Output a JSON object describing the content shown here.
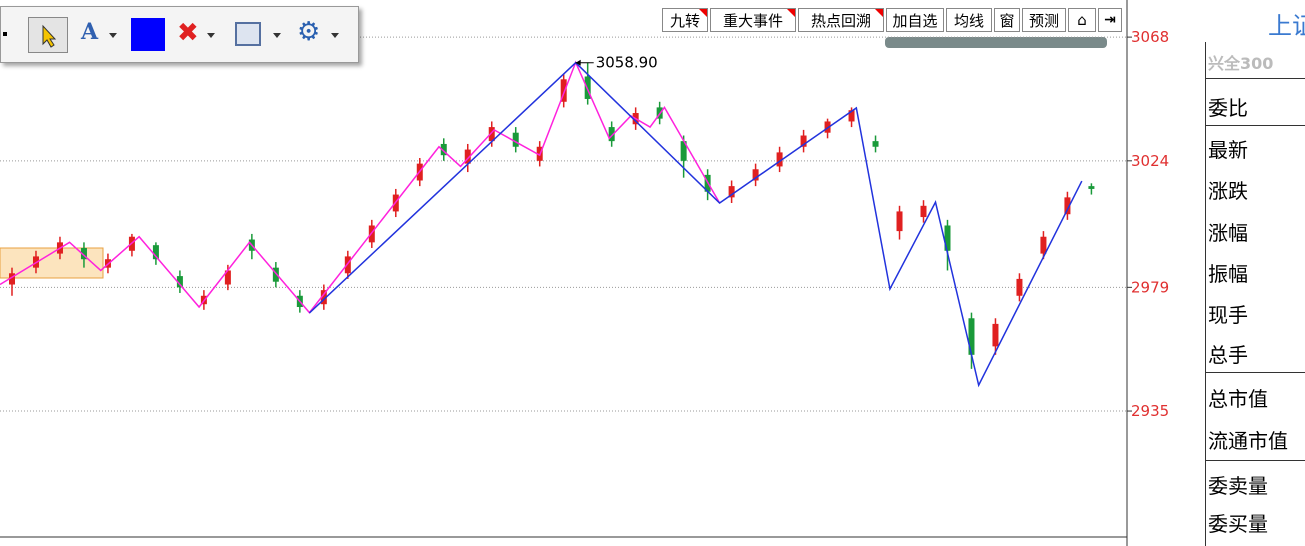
{
  "toolbar": {
    "text_tool": "A"
  },
  "tabs": [
    "九转",
    "重大事件",
    "热点回溯",
    "加自选",
    "均线",
    "窗",
    "预测"
  ],
  "quote_panel": {
    "title": "上证",
    "fund": "兴全300",
    "rows": [
      "委比",
      "最新",
      "涨跌",
      "涨幅",
      "振幅",
      "现手",
      "总手",
      "总市值",
      "流通市值",
      "委卖量",
      "委买量"
    ]
  },
  "chart_data": {
    "type": "candlestick",
    "x": [
      0,
      1,
      2,
      3,
      4,
      5,
      6,
      7,
      8,
      9,
      10,
      11,
      12,
      13,
      14,
      15,
      16,
      17,
      18,
      19,
      20,
      21,
      22,
      23,
      24,
      25,
      26,
      27,
      28,
      29,
      30,
      31,
      32,
      33,
      34,
      35,
      36,
      37,
      38,
      39,
      40,
      41,
      42,
      43,
      44,
      45
    ],
    "open": [
      2980,
      2986,
      2991,
      2993,
      2986,
      2992,
      2994,
      2983,
      2973,
      2980,
      2996,
      2986,
      2976,
      2973,
      2984,
      2995,
      3006,
      3017,
      3030,
      3023,
      3031,
      3034,
      3024,
      3045,
      3054,
      3036,
      3037,
      3043,
      3031,
      3019,
      3011,
      3017,
      3022,
      3029,
      3034,
      3038,
      3031,
      2999,
      3004,
      3001,
      2968,
      2958,
      2976,
      2991,
      3005,
      3015
    ],
    "high": [
      2986,
      2992,
      2997,
      2995,
      2991,
      2998,
      2995,
      2985,
      2978,
      2987,
      2998,
      2988,
      2978,
      2980,
      2992,
      3003,
      3014,
      3025,
      3032,
      3030,
      3038,
      3036,
      3031,
      3055,
      3059,
      3038,
      3043,
      3045,
      3033,
      3021,
      3017,
      3023,
      3029,
      3035,
      3039,
      3043,
      3033,
      3008,
      3010,
      3003,
      2970,
      2968,
      2984,
      2999,
      3013,
      3016
    ],
    "low": [
      2976,
      2984,
      2989,
      2986,
      2984,
      2990,
      2987,
      2977,
      2971,
      2978,
      2989,
      2979,
      2970,
      2971,
      2982,
      2993,
      3004,
      3015,
      3024,
      3020,
      3029,
      3027,
      3022,
      3043,
      3044,
      3029,
      3035,
      3037,
      3018,
      3010,
      3009,
      3015,
      3020,
      3027,
      3032,
      3036,
      3027,
      2996,
      3002,
      2985,
      2950,
      2955,
      2974,
      2989,
      3003,
      3012
    ],
    "close": [
      2984,
      2990,
      2995,
      2989,
      2989,
      2997,
      2989,
      2979,
      2976,
      2985,
      2992,
      2981,
      2972,
      2978,
      2990,
      3001,
      3012,
      3023,
      3026,
      3028,
      3036,
      3029,
      3029,
      3053,
      3046,
      3031,
      3041,
      3039,
      3024,
      3013,
      3015,
      3021,
      3027,
      3033,
      3038,
      3042,
      3029,
      3006,
      3008,
      2992,
      2955,
      2966,
      2982,
      2997,
      3011,
      3014
    ],
    "up_color": "#e02020",
    "down_color": "#1a9a3a",
    "lines": [
      {
        "color": "#ff22dd",
        "x": [
          -0.5,
          2.4,
          3.7,
          5.3,
          7.8,
          9.9,
          12.4,
          17.8,
          18.7,
          20.1,
          22,
          23.5,
          24.9,
          25.8,
          26.6,
          27.2,
          29.5
        ],
        "values": [
          2980,
          2995,
          2985,
          2997,
          2972,
          2995,
          2970,
          3029,
          3022,
          3035,
          3026,
          3059,
          3032,
          3040,
          3036,
          3043,
          3009
        ]
      },
      {
        "color": "#2233dd",
        "x": [
          12.4,
          23.5,
          29.5,
          35.2,
          36.6,
          38.5,
          40.3,
          44.6
        ],
        "values": [
          2969.9,
          3058.9,
          3009,
          3042.8,
          2978.4,
          3009.3,
          2944.2,
          3016.8
        ]
      }
    ],
    "annotation": {
      "value": 3058.9,
      "label": "3058.90",
      "x": 23.5
    },
    "xlim": [
      -0.5,
      46.4
    ],
    "ylim": [
      2890.2,
      3081.2
    ],
    "yticks": [
      2935,
      2979,
      3024,
      3068
    ],
    "grid": true
  }
}
